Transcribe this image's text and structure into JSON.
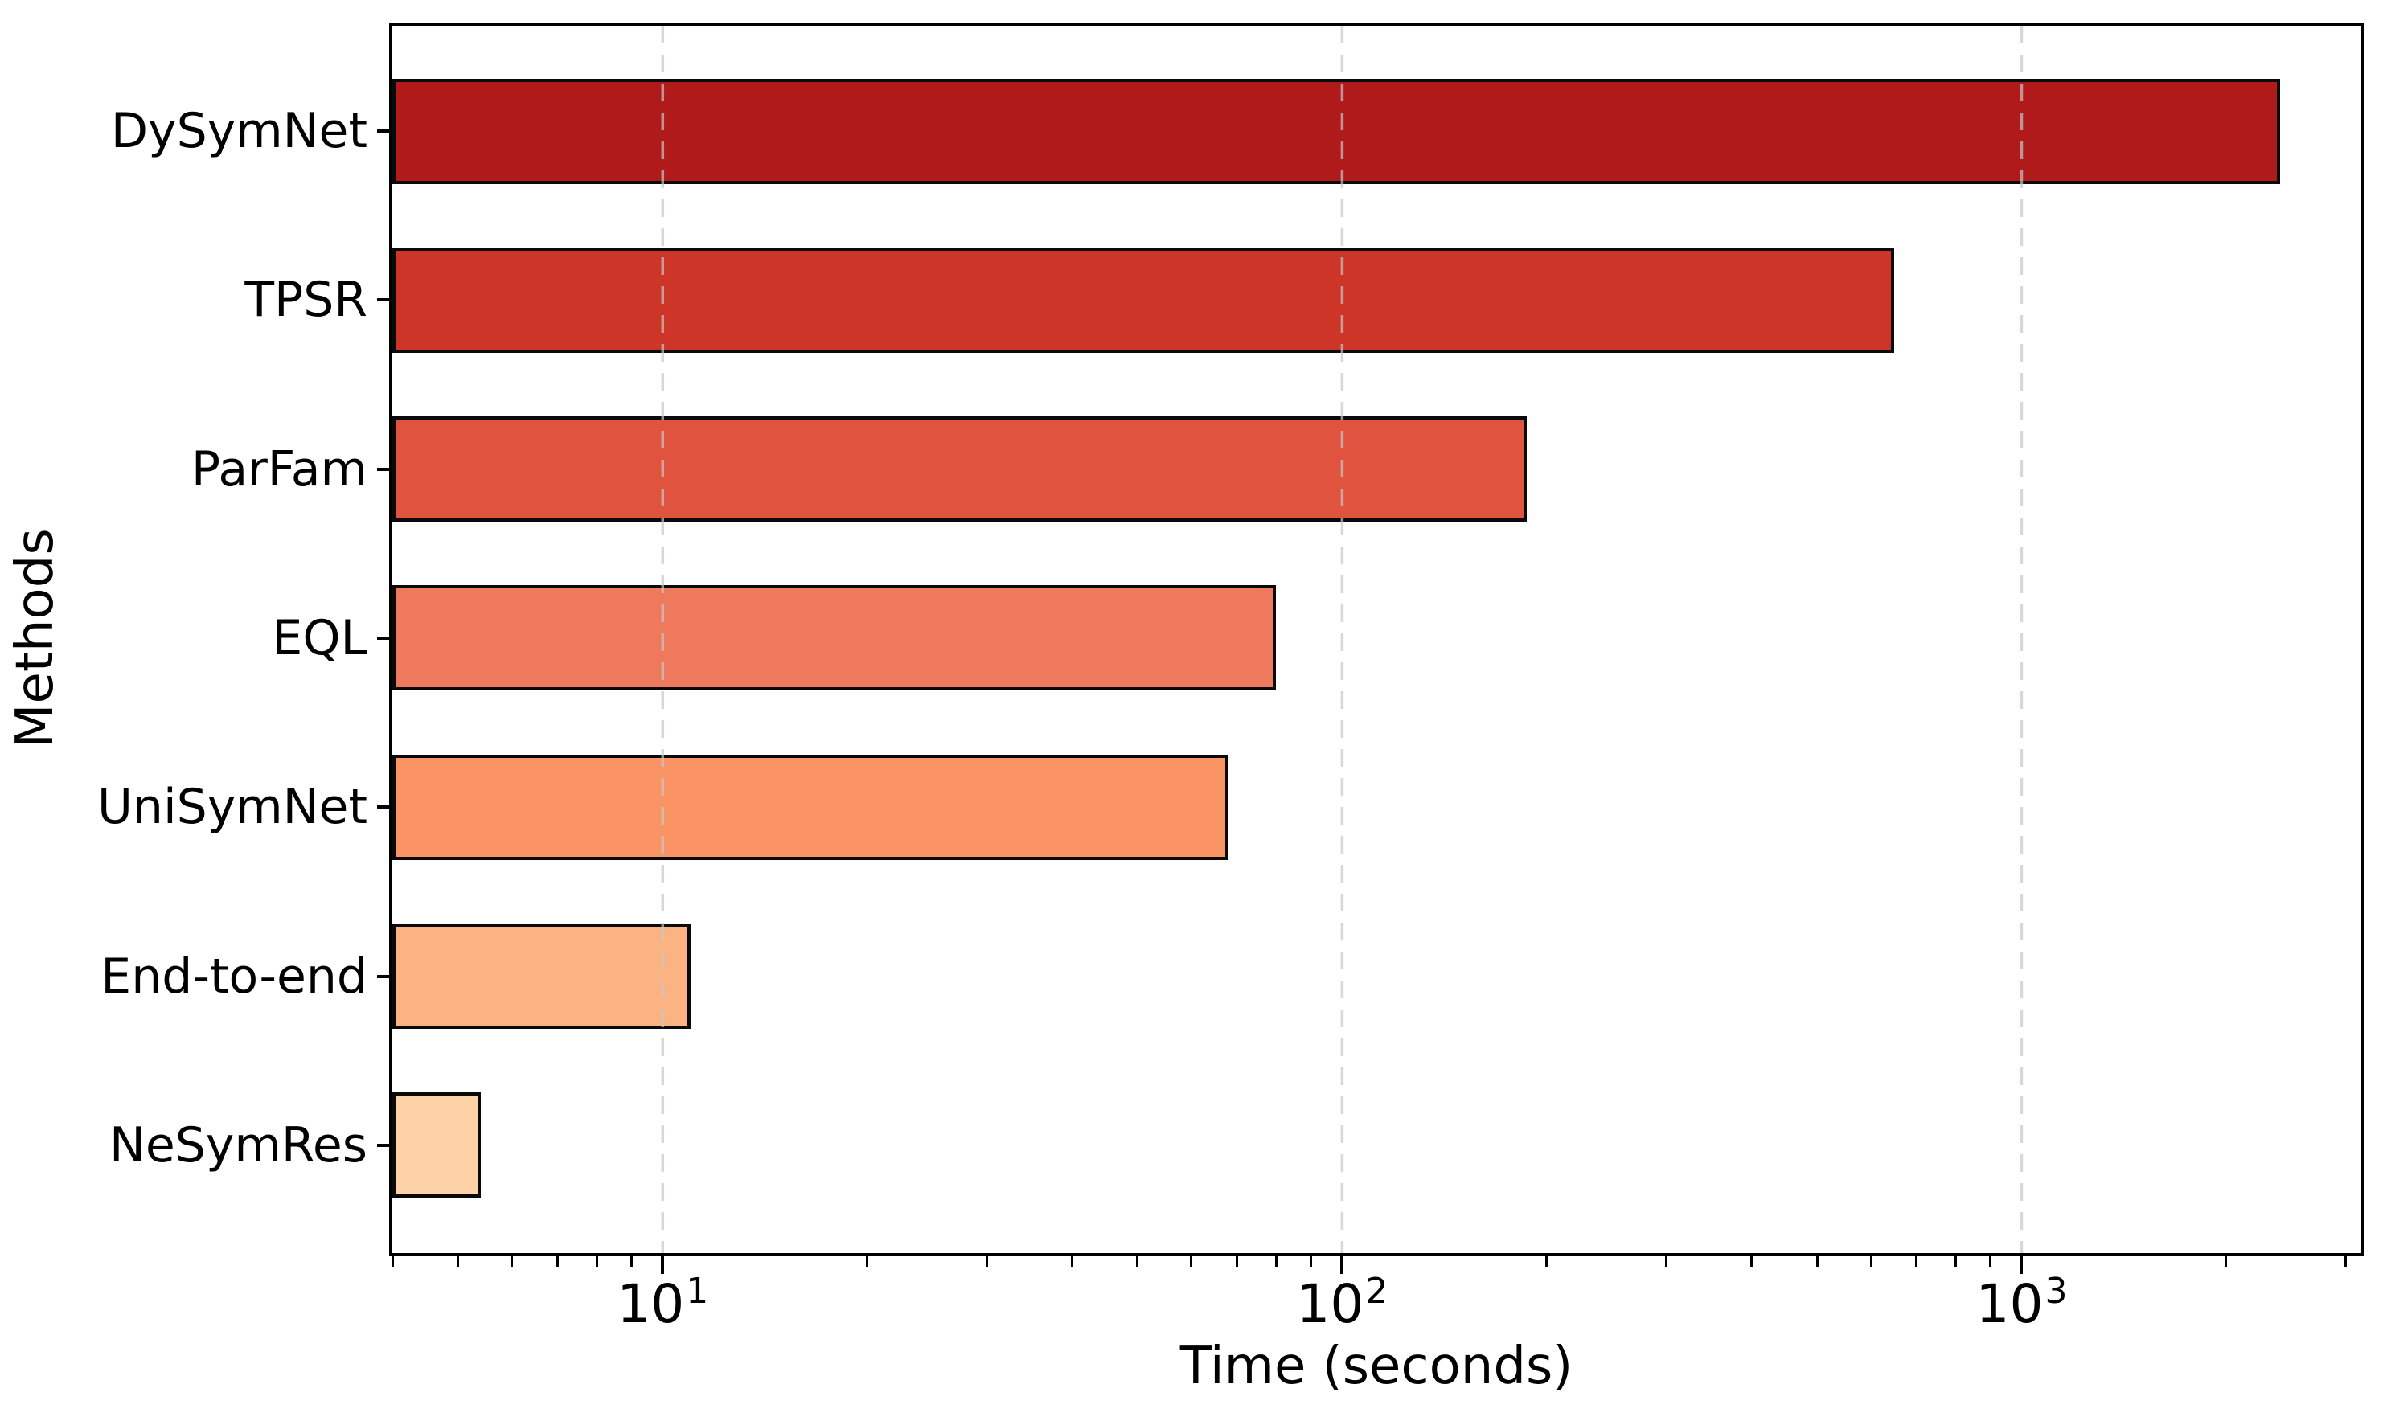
{
  "figure": {
    "background": "#ffffff",
    "text_color": "#000000"
  },
  "chart_data": {
    "type": "bar",
    "orientation": "horizontal",
    "title": "",
    "xlabel": "Time (seconds)",
    "ylabel": "Methods",
    "xscale": "log",
    "xlim": [
      4,
      3162
    ],
    "grid": {
      "axis": "x",
      "line_style": "dashed",
      "color": "#c8c8c8",
      "opacity": 0.7,
      "drawn_above_bars": true
    },
    "categories": [
      "DySymNet",
      "TPSR",
      "ParFam",
      "EQL",
      "UniSymNet",
      "End-to-end",
      "NeSymRes"
    ],
    "series": [
      {
        "name": "Time (seconds)",
        "values": [
          2400,
          650,
          187,
          80,
          68,
          11,
          5.4
        ]
      }
    ],
    "bar_colors": [
      "#b11a1b",
      "#cc3527",
      "#e0533e",
      "#ef795c",
      "#fa9464",
      "#fcb384",
      "#fdd2a6"
    ],
    "bar_edge_color": "#0a0a0a",
    "x_major_ticks": [
      {
        "value": 10,
        "base": "10",
        "exponent": "1"
      },
      {
        "value": 100,
        "base": "10",
        "exponent": "2"
      },
      {
        "value": 1000,
        "base": "10",
        "exponent": "3"
      }
    ],
    "legend": null
  }
}
